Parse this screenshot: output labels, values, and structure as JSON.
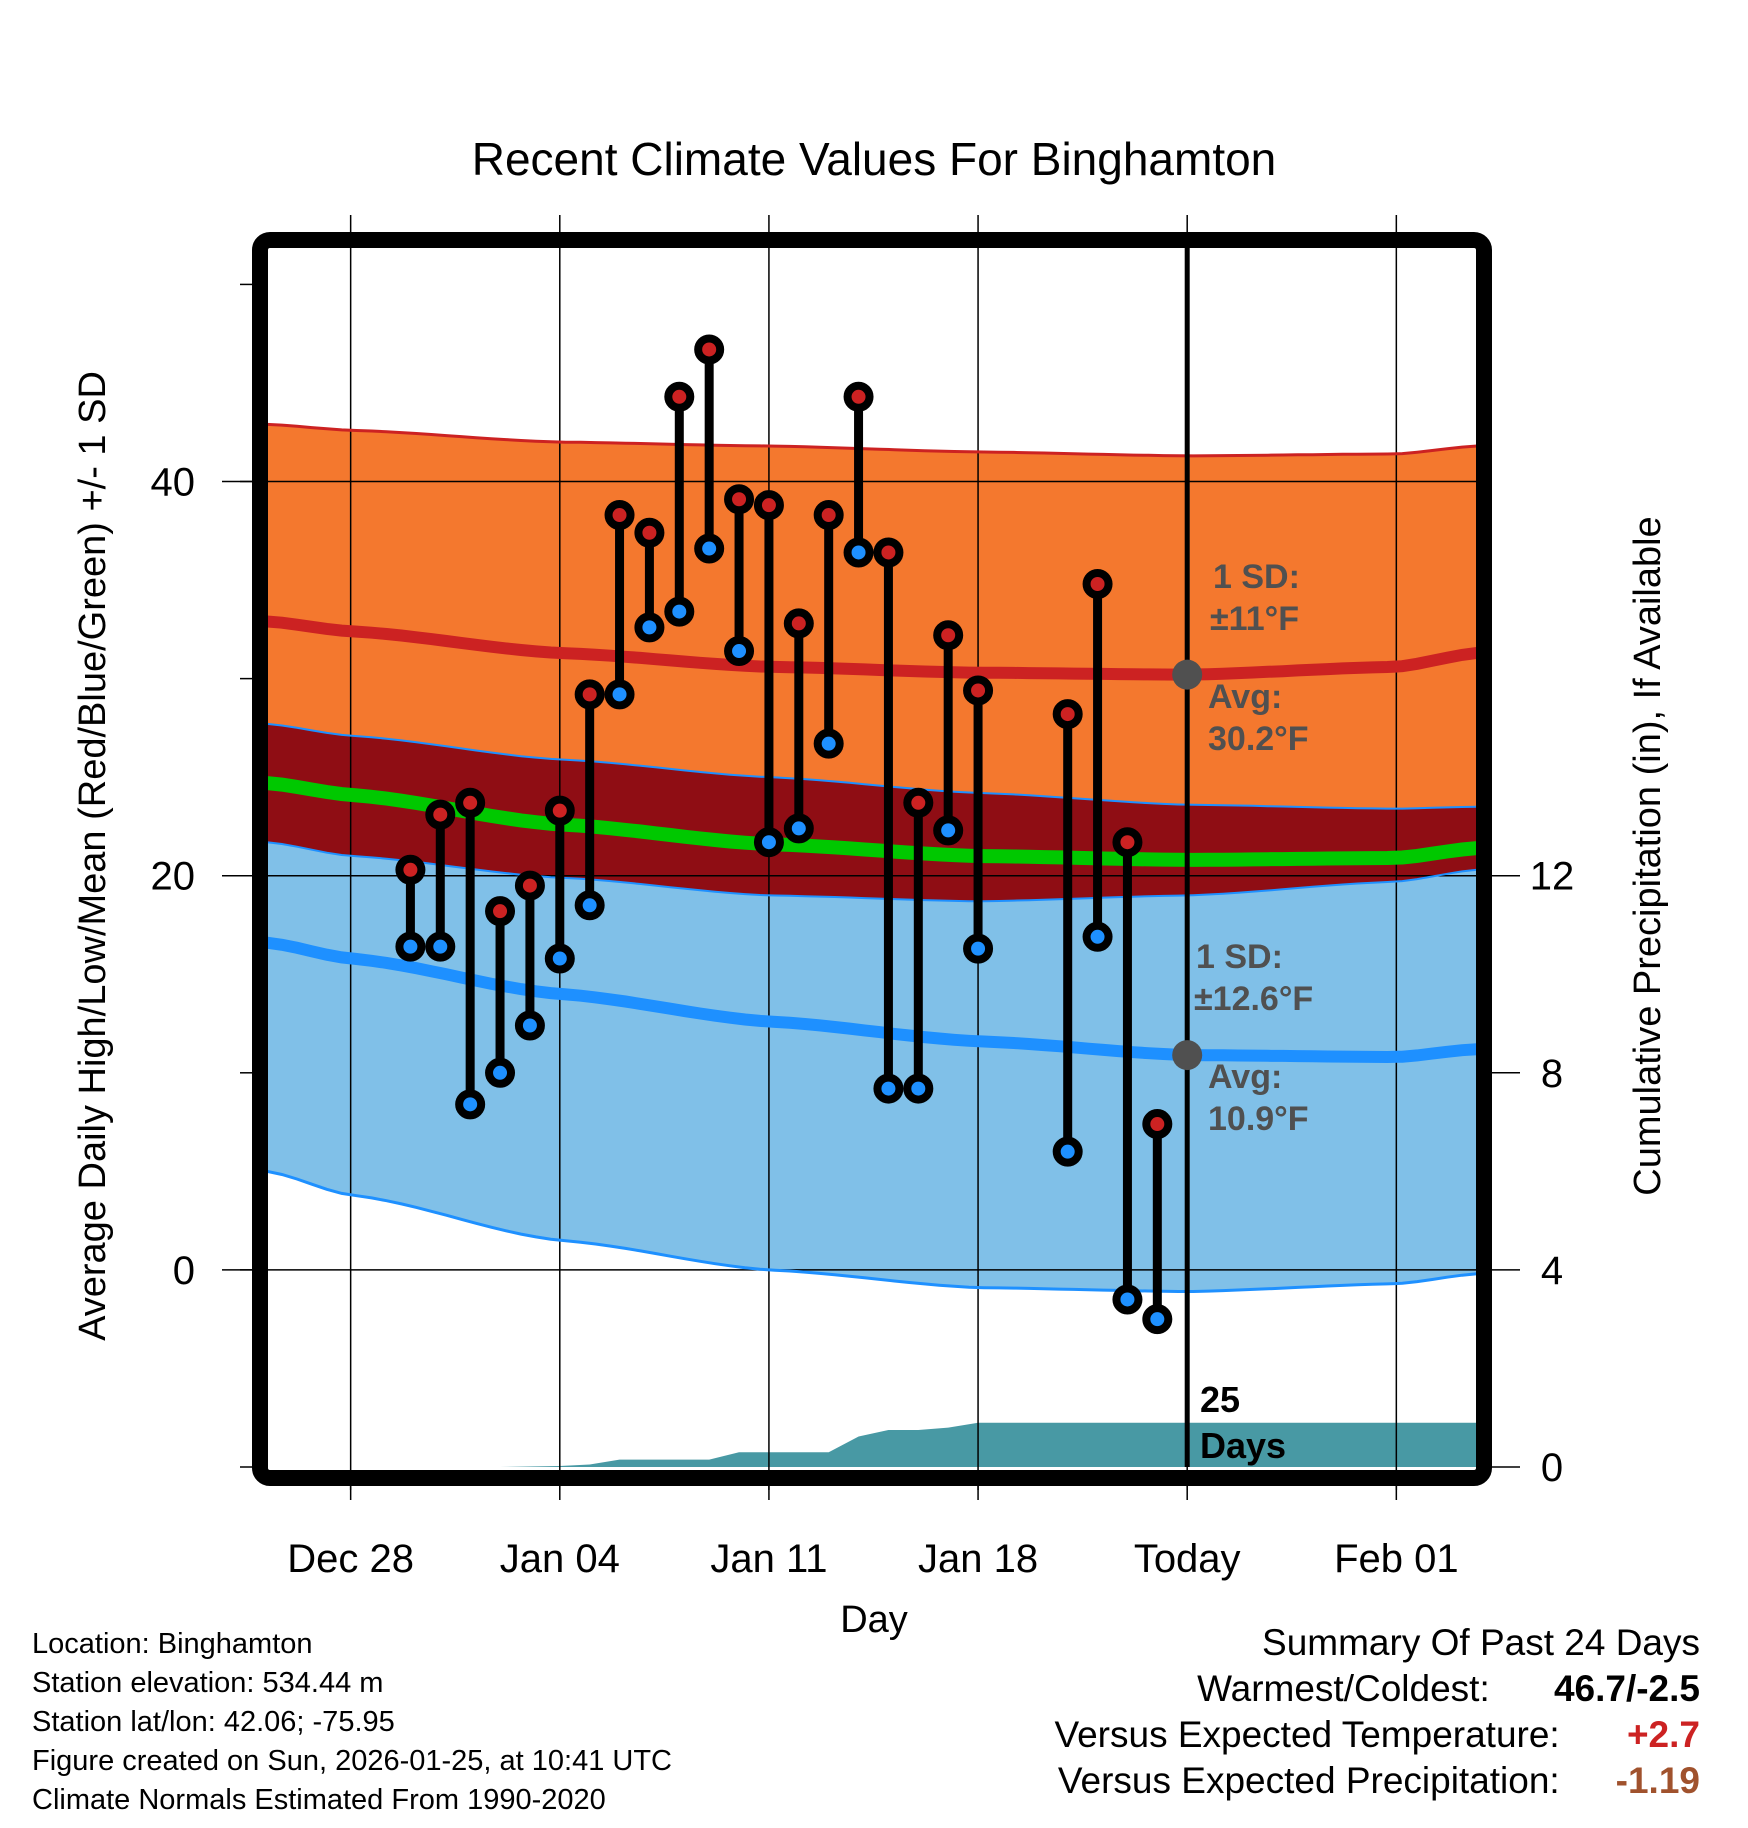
{
  "chart_data": {
    "type": "line",
    "title": "Recent Climate Values For Binghamton",
    "xlabel": "Day",
    "ylabel": "Average Daily High/Low/Mean (Red/Blue/Green) +/- 1 SD",
    "y2label": "Cumulative Precipitation (in), If Available",
    "ylim": [
      -10,
      52
    ],
    "y2lim": [
      0,
      24.8
    ],
    "xlim_days_from_today": [
      -30.8,
      9.7
    ],
    "grid": true,
    "xticks": [
      {
        "label": "Dec 28",
        "day": -28
      },
      {
        "label": "Jan 04",
        "day": -21
      },
      {
        "label": "Jan 11",
        "day": -14
      },
      {
        "label": "Jan 18",
        "day": -7
      },
      {
        "label": "Today",
        "day": 0
      },
      {
        "label": "Feb 01",
        "day": 7
      }
    ],
    "yticks": [
      0,
      20,
      40
    ],
    "yticks_minor": [
      -10,
      10,
      30,
      50
    ],
    "y2ticks": [
      0,
      4,
      8,
      12
    ],
    "normals": {
      "days": [
        -30.8,
        -28,
        -21,
        -14,
        -7,
        0,
        7,
        9.7
      ],
      "high_plus_sd": [
        42.9,
        42.6,
        42.0,
        41.8,
        41.5,
        41.3,
        41.4,
        41.8
      ],
      "high_mean": [
        32.9,
        32.4,
        31.3,
        30.6,
        30.3,
        30.2,
        30.6,
        31.3
      ],
      "high_minus_sd": [
        27.7,
        27.1,
        25.9,
        25.0,
        24.2,
        23.6,
        23.4,
        23.5
      ],
      "mean": [
        24.7,
        24.1,
        22.6,
        21.6,
        21.0,
        20.8,
        20.9,
        21.4
      ],
      "low_plus_sd": [
        21.7,
        21.0,
        19.9,
        19.0,
        18.7,
        19.0,
        19.7,
        20.3
      ],
      "low_mean": [
        16.6,
        15.8,
        14.0,
        12.6,
        11.6,
        10.9,
        10.8,
        11.2
      ],
      "low_minus_sd": [
        5.0,
        3.8,
        1.5,
        0.0,
        -0.9,
        -1.1,
        -0.7,
        -0.2
      ]
    },
    "series": [
      {
        "name": "Daily High",
        "color": "#cc2222",
        "days": [
          -26,
          -25,
          -24,
          -23,
          -22,
          -21,
          -20,
          -19,
          -18,
          -17,
          -16,
          -15,
          -14,
          -13,
          -12,
          -11,
          -10,
          -9,
          -8,
          -7,
          -4,
          -3,
          -2,
          -1
        ],
        "values": [
          20.3,
          23.1,
          23.7,
          18.2,
          19.5,
          23.3,
          29.2,
          38.3,
          37.4,
          44.3,
          46.7,
          39.1,
          38.8,
          32.8,
          38.3,
          44.3,
          36.4,
          23.7,
          32.2,
          29.4,
          28.2,
          34.8,
          21.7,
          7.4
        ]
      },
      {
        "name": "Daily Low",
        "color": "#1e90ff",
        "days": [
          -26,
          -25,
          -24,
          -23,
          -22,
          -21,
          -20,
          -19,
          -18,
          -17,
          -16,
          -15,
          -14,
          -13,
          -12,
          -11,
          -10,
          -9,
          -8,
          -7,
          -4,
          -3,
          -2,
          -1
        ],
        "values": [
          16.4,
          16.4,
          8.4,
          10.0,
          12.4,
          15.8,
          18.5,
          29.2,
          32.6,
          33.4,
          36.6,
          31.4,
          21.7,
          22.4,
          26.7,
          36.4,
          9.2,
          9.2,
          22.3,
          16.3,
          6.0,
          16.9,
          -1.5,
          -2.5
        ]
      },
      {
        "name": "Cumulative Precipitation (in)",
        "color": "#4899a4",
        "axis": "right",
        "days": [
          -30.8,
          -23,
          -21,
          -20,
          -19,
          -16,
          -15,
          -12,
          -11,
          -10,
          -9,
          -8,
          -7,
          9.7
        ],
        "values": [
          0,
          0,
          0.02,
          0.05,
          0.15,
          0.15,
          0.3,
          0.3,
          0.62,
          0.75,
          0.75,
          0.8,
          0.9,
          0.9
        ]
      }
    ],
    "annotations": {
      "high_sd": "1 SD:",
      "high_sd_value": "±11°F",
      "high_avg": "Avg:",
      "high_avg_value": "30.2°F",
      "low_sd": "1 SD:",
      "low_sd_value": "±12.6°F",
      "low_avg": "Avg:",
      "low_avg_value": "10.9°F",
      "days_count": "25",
      "days_word": "Days"
    },
    "colors": {
      "orange_band": "#f4782e",
      "high_line": "#cc2222",
      "dark_band": "#8f0d14",
      "mean_line": "#00c800",
      "blue_band": "#80c0e8",
      "low_line": "#1e90ff",
      "precip": "#4899a4",
      "marker_avg": "#505050"
    }
  },
  "info": {
    "location": "Location: Binghamton",
    "elevation": "Station elevation: 534.44 m",
    "latlon": "Station lat/lon: 42.06; -75.95",
    "created": "Figure created on Sun, 2026-01-25, at 10:41 UTC",
    "normals": "Climate Normals Estimated From 1990-2020"
  },
  "summary": {
    "title": "Summary Of Past 24 Days",
    "warmest_coldest_label": "Warmest/Coldest:",
    "warmest_coldest_value": "46.7/-2.5",
    "temp_label": "Versus Expected Temperature:",
    "temp_value": "+2.7",
    "temp_color": "#cc2222",
    "precip_label": "Versus Expected Precipitation:",
    "precip_value": "-1.19",
    "precip_color": "#a0522d"
  }
}
